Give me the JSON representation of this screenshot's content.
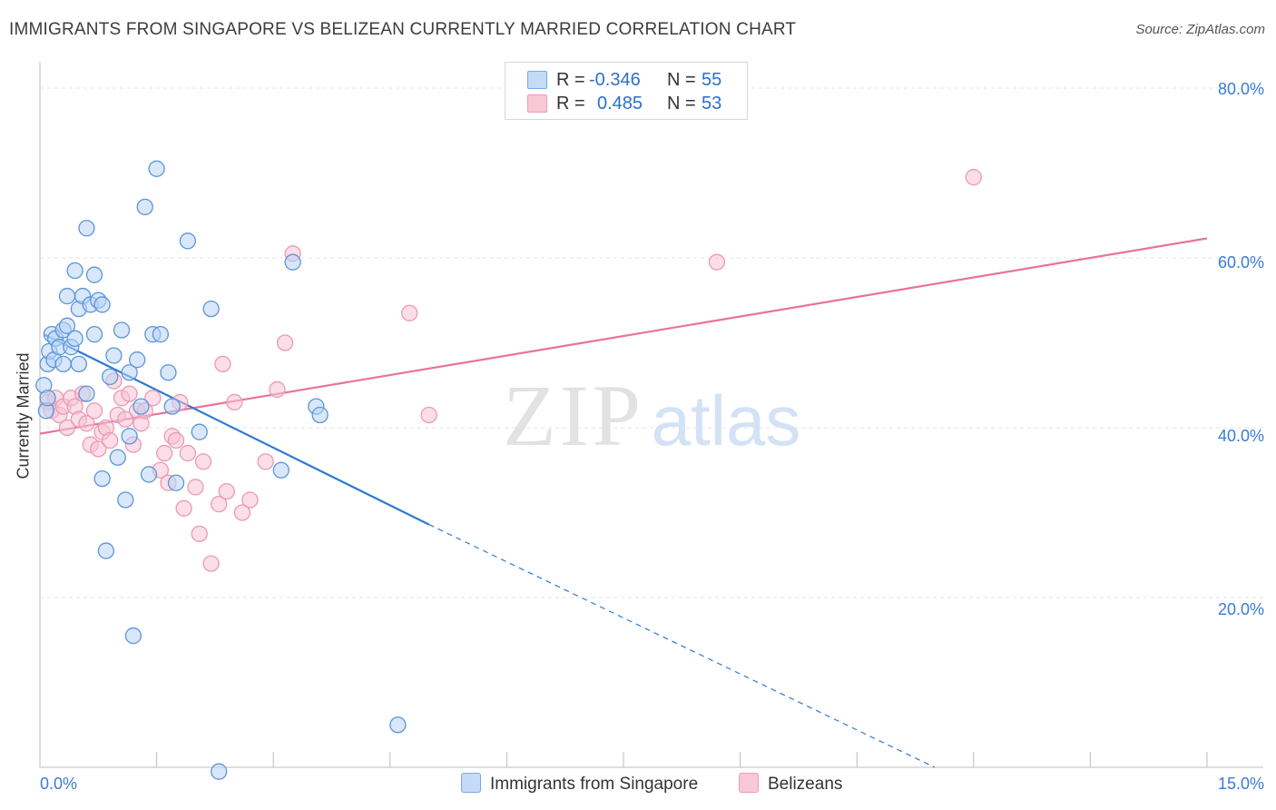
{
  "title": "IMMIGRANTS FROM SINGAPORE VS BELIZEAN CURRENTLY MARRIED CORRELATION CHART",
  "source": "Source: ZipAtlas.com",
  "watermark": {
    "zip": "ZIP",
    "atlas": "atlas"
  },
  "colors": {
    "blue": "#2e7ad1",
    "blue_fill": "#b8d4f6",
    "pink": "#e8739a",
    "pink_fill": "#f8c3d3",
    "tick_label": "#3a7bd5",
    "grid": "#e3e3e3"
  },
  "legend": {
    "rows": [
      {
        "r_label": "R =",
        "r_value": "-0.346",
        "n_label": "N =",
        "n_value": "55"
      },
      {
        "r_label": "R =",
        "r_value": "0.485",
        "n_label": "N =",
        "n_value": "53"
      }
    ]
  },
  "bottom_legend": {
    "items": [
      {
        "label": "Immigrants from Singapore"
      },
      {
        "label": "Belizeans"
      }
    ]
  },
  "chart_data": {
    "type": "scatter",
    "title": "IMMIGRANTS FROM SINGAPORE VS BELIZEAN CURRENTLY MARRIED CORRELATION CHART",
    "xlabel": "",
    "ylabel": "Currently Married",
    "xlim": [
      0,
      15
    ],
    "ylim": [
      0,
      80
    ],
    "x_tick_labels": [
      "0.0%",
      "15.0%"
    ],
    "y_ticks": [
      20,
      40,
      60,
      80
    ],
    "y_tick_labels": [
      "20.0%",
      "40.0%",
      "60.0%",
      "80.0%"
    ],
    "grid": true,
    "series": [
      {
        "name": "Immigrants from Singapore",
        "color": "blue",
        "r": -0.346,
        "n": 55,
        "trend": {
          "x_start": 0.05,
          "y_start": 51.0,
          "x_end": 5.0,
          "y_end": 28.6,
          "dashed_to_x": 11.5,
          "dashed_to_y": 0.0
        },
        "points": [
          [
            0.05,
            45.0
          ],
          [
            0.08,
            42.0
          ],
          [
            0.1,
            43.5
          ],
          [
            0.1,
            47.5
          ],
          [
            0.12,
            49.0
          ],
          [
            0.15,
            51.0
          ],
          [
            0.18,
            48.0
          ],
          [
            0.2,
            50.5
          ],
          [
            0.25,
            49.5
          ],
          [
            0.3,
            47.5
          ],
          [
            0.3,
            51.5
          ],
          [
            0.35,
            52.0
          ],
          [
            0.35,
            55.5
          ],
          [
            0.4,
            49.5
          ],
          [
            0.45,
            58.5
          ],
          [
            0.45,
            50.5
          ],
          [
            0.5,
            47.5
          ],
          [
            0.5,
            54.0
          ],
          [
            0.55,
            55.5
          ],
          [
            0.6,
            63.5
          ],
          [
            0.6,
            44.0
          ],
          [
            0.65,
            54.5
          ],
          [
            0.7,
            51.0
          ],
          [
            0.7,
            58.0
          ],
          [
            0.75,
            55.0
          ],
          [
            0.8,
            54.5
          ],
          [
            0.8,
            34.0
          ],
          [
            0.85,
            25.5
          ],
          [
            0.9,
            46.0
          ],
          [
            0.95,
            48.5
          ],
          [
            1.0,
            36.5
          ],
          [
            1.05,
            51.5
          ],
          [
            1.1,
            31.5
          ],
          [
            1.15,
            39.0
          ],
          [
            1.15,
            46.5
          ],
          [
            1.2,
            15.5
          ],
          [
            1.25,
            48.0
          ],
          [
            1.3,
            42.5
          ],
          [
            1.35,
            66.0
          ],
          [
            1.4,
            34.5
          ],
          [
            1.45,
            51.0
          ],
          [
            1.5,
            70.5
          ],
          [
            1.55,
            51.0
          ],
          [
            1.65,
            46.5
          ],
          [
            1.7,
            42.5
          ],
          [
            1.75,
            33.5
          ],
          [
            1.9,
            62.0
          ],
          [
            2.05,
            39.5
          ],
          [
            2.2,
            54.0
          ],
          [
            2.3,
            -0.5
          ],
          [
            3.1,
            35.0
          ],
          [
            3.25,
            59.5
          ],
          [
            3.55,
            42.5
          ],
          [
            3.6,
            41.5
          ],
          [
            4.6,
            5.0
          ]
        ]
      },
      {
        "name": "Belizeans",
        "color": "pink",
        "r": 0.485,
        "n": 53,
        "trend": {
          "x_start": 0.0,
          "y_start": 39.3,
          "x_end": 15.0,
          "y_end": 62.3
        },
        "points": [
          [
            0.1,
            43.0
          ],
          [
            0.15,
            42.0
          ],
          [
            0.2,
            43.5
          ],
          [
            0.25,
            41.5
          ],
          [
            0.3,
            42.5
          ],
          [
            0.35,
            40.0
          ],
          [
            0.4,
            43.5
          ],
          [
            0.45,
            42.5
          ],
          [
            0.5,
            41.0
          ],
          [
            0.55,
            44.0
          ],
          [
            0.6,
            40.5
          ],
          [
            0.65,
            38.0
          ],
          [
            0.7,
            42.0
          ],
          [
            0.75,
            37.5
          ],
          [
            0.8,
            39.5
          ],
          [
            0.85,
            40.0
          ],
          [
            0.9,
            38.5
          ],
          [
            0.95,
            45.5
          ],
          [
            1.0,
            41.5
          ],
          [
            1.05,
            43.5
          ],
          [
            1.1,
            41.0
          ],
          [
            1.15,
            44.0
          ],
          [
            1.2,
            38.0
          ],
          [
            1.25,
            42.0
          ],
          [
            1.3,
            40.5
          ],
          [
            1.35,
            42.0
          ],
          [
            1.45,
            43.5
          ],
          [
            1.55,
            35.0
          ],
          [
            1.6,
            37.0
          ],
          [
            1.65,
            33.5
          ],
          [
            1.7,
            39.0
          ],
          [
            1.75,
            38.5
          ],
          [
            1.8,
            43.0
          ],
          [
            1.85,
            30.5
          ],
          [
            1.9,
            37.0
          ],
          [
            2.0,
            33.0
          ],
          [
            2.05,
            27.5
          ],
          [
            2.1,
            36.0
          ],
          [
            2.2,
            24.0
          ],
          [
            2.3,
            31.0
          ],
          [
            2.35,
            47.5
          ],
          [
            2.4,
            32.5
          ],
          [
            2.5,
            43.0
          ],
          [
            2.6,
            30.0
          ],
          [
            2.7,
            31.5
          ],
          [
            2.9,
            36.0
          ],
          [
            3.05,
            44.5
          ],
          [
            3.15,
            50.0
          ],
          [
            3.25,
            60.5
          ],
          [
            4.75,
            53.5
          ],
          [
            5.0,
            41.5
          ],
          [
            8.7,
            59.5
          ],
          [
            12.0,
            69.5
          ]
        ]
      }
    ]
  }
}
